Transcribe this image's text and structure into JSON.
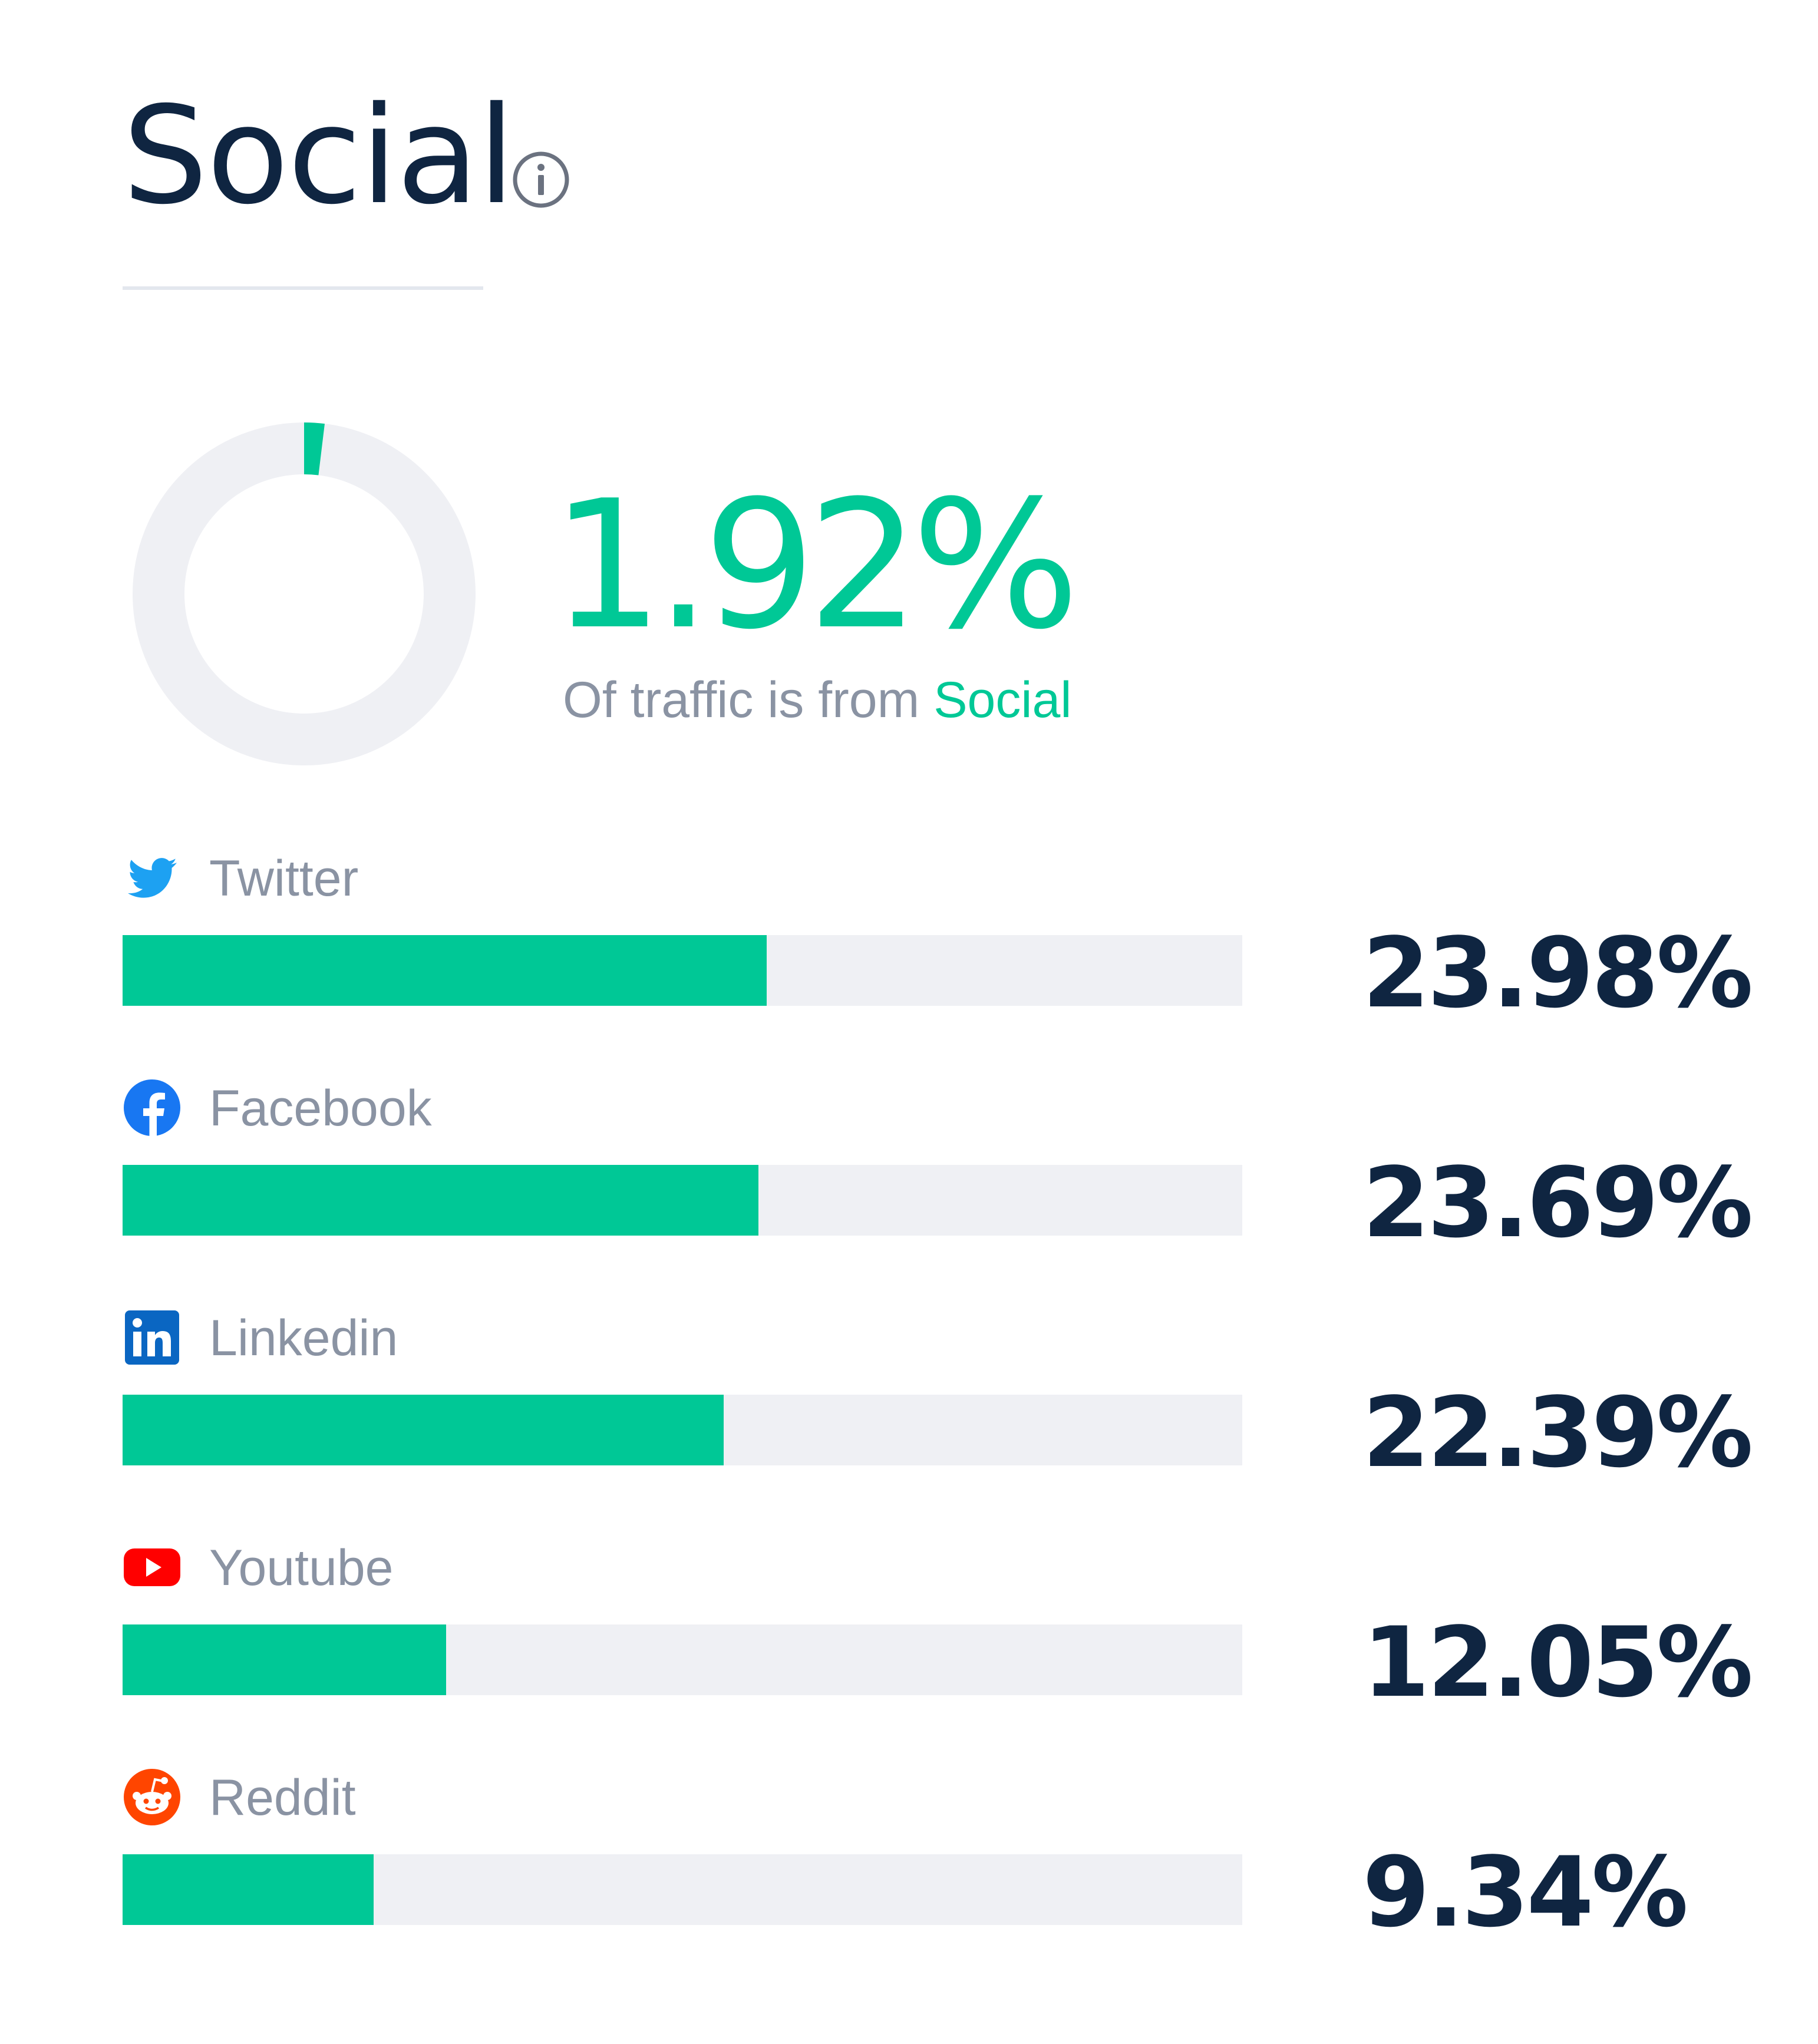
{
  "header": {
    "title": "Social",
    "info_icon": "info-icon"
  },
  "summary": {
    "percent_label": "1.92%",
    "percent_value": 1.92,
    "subtitle_prefix": "Of traffic is from",
    "subtitle_accent": "Social"
  },
  "colors": {
    "accent": "#00c896",
    "track": "#eff0f4",
    "text_dark": "#0f2541",
    "text_muted": "#8a93a3"
  },
  "sources": [
    {
      "label": "Twitter",
      "value_label": "23.98%",
      "value": 23.98,
      "icon": "twitter-icon",
      "icon_color": "#1da1f2"
    },
    {
      "label": "Facebook",
      "value_label": "23.69%",
      "value": 23.69,
      "icon": "facebook-icon",
      "icon_color": "#1877f2"
    },
    {
      "label": "Linkedin",
      "value_label": "22.39%",
      "value": 22.39,
      "icon": "linkedin-icon",
      "icon_color": "#0a66c2"
    },
    {
      "label": "Youtube",
      "value_label": "12.05%",
      "value": 12.05,
      "icon": "youtube-icon",
      "icon_color": "#ff0000"
    },
    {
      "label": "Reddit",
      "value_label": "9.34%",
      "value": 9.34,
      "icon": "reddit-icon",
      "icon_color": "#ff4500"
    }
  ],
  "bar_scale_max": 41.7
}
